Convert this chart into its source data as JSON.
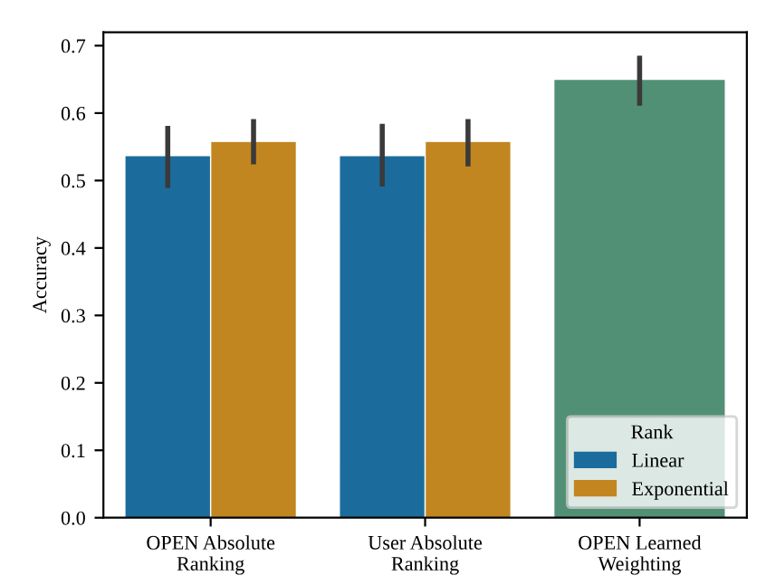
{
  "chart_data": {
    "type": "bar",
    "ylabel": "Accuracy",
    "legend_title": "Rank",
    "legend": "bottom right",
    "grid": false,
    "categories": [
      "OPEN Absolute\nRanking",
      "User Absolute\nRanking",
      "OPEN Learned\nWeighting"
    ],
    "series": [
      {
        "name": "Linear",
        "color": "#1b6c9c",
        "values": [
          0.537,
          0.537,
          null
        ],
        "errors": [
          [
            0.489,
            0.581
          ],
          [
            0.491,
            0.584
          ],
          null
        ]
      },
      {
        "name": "Exponential",
        "color": "#c28620",
        "values": [
          0.558,
          0.558,
          null
        ],
        "errors": [
          [
            0.524,
            0.591
          ],
          [
            0.521,
            0.591
          ],
          null
        ]
      },
      {
        "color": "#519074",
        "values": [
          null,
          null,
          0.65
        ],
        "errors": [
          null,
          null,
          [
            0.611,
            0.685
          ]
        ]
      }
    ],
    "ylim": [
      0,
      0.72
    ],
    "yticks": [
      {
        "value": 0,
        "label": "0.0"
      },
      0.1,
      0.2,
      0.3,
      0.4,
      0.5,
      0.6,
      0.7
    ]
  }
}
